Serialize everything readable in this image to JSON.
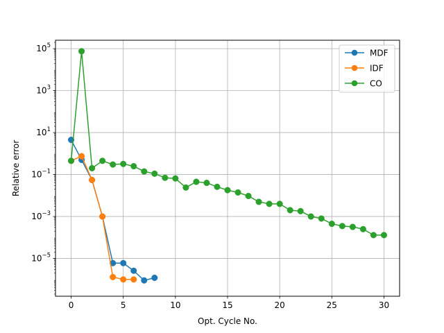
{
  "chart_data": {
    "type": "line",
    "title": "",
    "xlabel": "Opt. Cycle No.",
    "ylabel": "Relative error",
    "xlim": [
      -1.5,
      31.5
    ],
    "ylim_log10": [
      -6.8,
      5.4
    ],
    "yscale": "log",
    "grid": true,
    "legend_position": "top-right",
    "x_ticks": [
      0,
      5,
      10,
      15,
      20,
      25,
      30
    ],
    "y_ticks": [
      {
        "exp": 5,
        "base": "10",
        "sup": "5"
      },
      {
        "exp": 3,
        "base": "10",
        "sup": "3"
      },
      {
        "exp": 1,
        "base": "10",
        "sup": "1"
      },
      {
        "exp": -1,
        "base": "10",
        "sup": "−1"
      },
      {
        "exp": -3,
        "base": "10",
        "sup": "−3"
      },
      {
        "exp": -5,
        "base": "10",
        "sup": "−5"
      }
    ],
    "series": [
      {
        "name": "MDF",
        "color": "#1f77b4",
        "x": [
          0,
          1,
          2,
          3,
          4,
          5,
          6,
          7,
          8
        ],
        "y": [
          4.5,
          0.5,
          0.055,
          0.001,
          6e-06,
          6e-06,
          2.6e-06,
          9e-07,
          1.2e-06
        ]
      },
      {
        "name": "IDF",
        "color": "#ff7f0e",
        "x": [
          0,
          1,
          2,
          3,
          4,
          5,
          6
        ],
        "y": [
          0.45,
          0.75,
          0.055,
          0.001,
          1.3e-06,
          1e-06,
          1e-06
        ]
      },
      {
        "name": "CO",
        "color": "#2ca02c",
        "x": [
          0,
          1,
          2,
          3,
          4,
          5,
          6,
          7,
          8,
          9,
          10,
          11,
          12,
          13,
          14,
          15,
          16,
          17,
          18,
          19,
          20,
          21,
          22,
          23,
          24,
          25,
          26,
          27,
          28,
          29,
          30
        ],
        "y": [
          0.45,
          75000,
          0.2,
          0.45,
          0.3,
          0.32,
          0.25,
          0.14,
          0.11,
          0.07,
          0.065,
          0.024,
          0.045,
          0.04,
          0.026,
          0.018,
          0.014,
          0.0095,
          0.005,
          0.004,
          0.004,
          0.002,
          0.0018,
          0.001,
          0.0008,
          0.00045,
          0.00035,
          0.00032,
          0.00025,
          0.00013,
          0.00013
        ]
      }
    ]
  }
}
